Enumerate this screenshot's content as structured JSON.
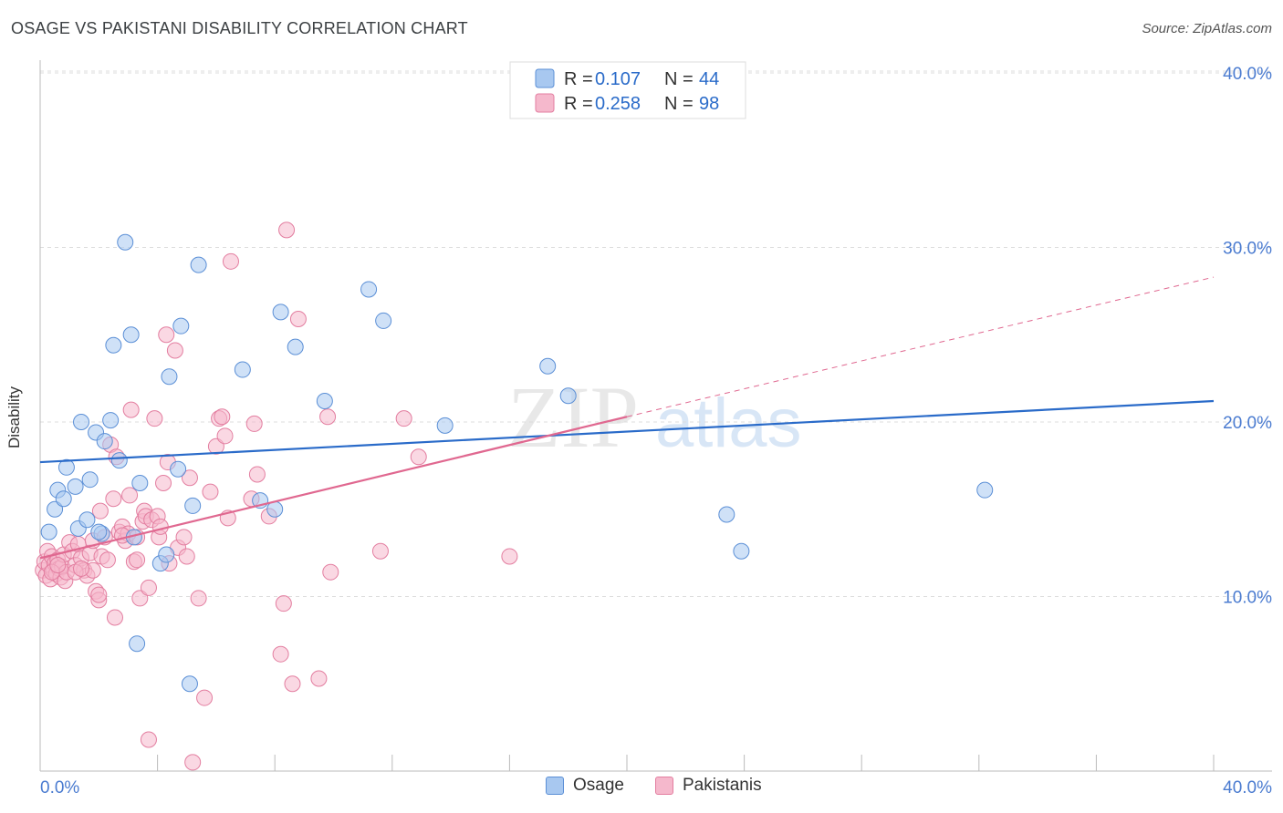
{
  "header": {
    "title": "OSAGE VS PAKISTANI DISABILITY CORRELATION CHART",
    "source": "Source: ZipAtlas.com"
  },
  "watermark": {
    "zip": "ZIP",
    "atlas": "atlas"
  },
  "legend": {
    "rows": [
      {
        "r_label": "R =",
        "r_value": "0.107",
        "n_label": "N =",
        "n_value": "44"
      },
      {
        "r_label": "R =",
        "r_value": "0.258",
        "n_label": "N =",
        "n_value": "98"
      }
    ]
  },
  "bottom_legend": {
    "osage": "Osage",
    "pakistanis": "Pakistanis"
  },
  "colors": {
    "osage_fill": "#a8c8f0",
    "osage_stroke": "#5b8fd6",
    "osage_line": "#2a6bc9",
    "pak_fill": "#f5b8cc",
    "pak_stroke": "#e37ea0",
    "pak_line": "#e06890",
    "axis_text": "#4a7bd0",
    "grid": "#dddddd"
  },
  "chart_data": {
    "type": "scatter",
    "title": "OSAGE VS PAKISTANI DISABILITY CORRELATION CHART",
    "xlabel": "",
    "ylabel": "Disability",
    "xlim": [
      0,
      40
    ],
    "ylim": [
      0,
      40
    ],
    "x_tick_labels": [
      "0.0%",
      "40.0%"
    ],
    "y_ticks": [
      10,
      20,
      30,
      40
    ],
    "y_tick_labels": [
      "10.0%",
      "20.0%",
      "30.0%",
      "40.0%"
    ],
    "grid": true,
    "legend_position": "top-center",
    "series": [
      {
        "name": "Osage",
        "r": 0.107,
        "n": 44,
        "trend": {
          "x": [
            0,
            40
          ],
          "y": [
            17.7,
            21.2
          ],
          "style": "solid"
        },
        "points": [
          [
            0.3,
            13.7
          ],
          [
            0.5,
            15.0
          ],
          [
            0.6,
            16.1
          ],
          [
            0.8,
            15.6
          ],
          [
            0.9,
            17.4
          ],
          [
            1.2,
            16.3
          ],
          [
            1.3,
            13.9
          ],
          [
            1.4,
            20.0
          ],
          [
            1.6,
            14.4
          ],
          [
            1.7,
            16.7
          ],
          [
            1.9,
            19.4
          ],
          [
            2.1,
            13.6
          ],
          [
            2.2,
            18.9
          ],
          [
            2.4,
            20.1
          ],
          [
            2.5,
            24.4
          ],
          [
            2.7,
            17.8
          ],
          [
            2.9,
            30.3
          ],
          [
            3.1,
            25.0
          ],
          [
            3.2,
            13.4
          ],
          [
            3.4,
            16.5
          ],
          [
            4.1,
            11.9
          ],
          [
            4.3,
            12.4
          ],
          [
            4.4,
            22.6
          ],
          [
            4.7,
            17.3
          ],
          [
            4.8,
            25.5
          ],
          [
            5.2,
            15.2
          ],
          [
            5.4,
            29.0
          ],
          [
            6.9,
            23.0
          ],
          [
            7.5,
            15.5
          ],
          [
            8.0,
            15.0
          ],
          [
            8.2,
            26.3
          ],
          [
            8.7,
            24.3
          ],
          [
            9.7,
            21.2
          ],
          [
            11.2,
            27.6
          ],
          [
            11.7,
            25.8
          ],
          [
            13.8,
            19.8
          ],
          [
            17.3,
            23.2
          ],
          [
            18.0,
            21.5
          ],
          [
            23.4,
            14.7
          ],
          [
            23.9,
            12.6
          ],
          [
            32.2,
            16.1
          ],
          [
            3.3,
            7.3
          ],
          [
            5.1,
            5.0
          ],
          [
            2.0,
            13.7
          ]
        ]
      },
      {
        "name": "Pakistanis",
        "r": 0.258,
        "n": 98,
        "trend": {
          "x": [
            0,
            20
          ],
          "y": [
            12.2,
            20.3
          ],
          "style": "solid",
          "extension": {
            "x": [
              20,
              40
            ],
            "y": [
              20.3,
              28.3
            ],
            "style": "dashed"
          }
        },
        "points": [
          [
            0.1,
            11.5
          ],
          [
            0.15,
            12.0
          ],
          [
            0.2,
            11.2
          ],
          [
            0.25,
            12.6
          ],
          [
            0.3,
            11.8
          ],
          [
            0.35,
            11.0
          ],
          [
            0.4,
            12.3
          ],
          [
            0.45,
            11.5
          ],
          [
            0.5,
            11.9
          ],
          [
            0.55,
            11.3
          ],
          [
            0.6,
            12.1
          ],
          [
            0.65,
            11.6
          ],
          [
            0.7,
            11.1
          ],
          [
            0.75,
            11.7
          ],
          [
            0.8,
            12.4
          ],
          [
            0.85,
            10.9
          ],
          [
            0.9,
            11.4
          ],
          [
            1.0,
            13.1
          ],
          [
            1.1,
            12.6
          ],
          [
            1.2,
            11.8
          ],
          [
            1.3,
            13.0
          ],
          [
            1.4,
            12.2
          ],
          [
            1.5,
            11.5
          ],
          [
            1.6,
            11.2
          ],
          [
            1.7,
            12.5
          ],
          [
            1.8,
            13.2
          ],
          [
            1.9,
            10.3
          ],
          [
            2.0,
            9.8
          ],
          [
            2.05,
            14.9
          ],
          [
            2.1,
            12.3
          ],
          [
            2.2,
            13.4
          ],
          [
            2.3,
            12.1
          ],
          [
            2.4,
            18.7
          ],
          [
            2.5,
            15.6
          ],
          [
            2.55,
            8.8
          ],
          [
            2.6,
            18.0
          ],
          [
            2.7,
            13.7
          ],
          [
            2.8,
            14.0
          ],
          [
            2.9,
            13.2
          ],
          [
            3.0,
            13.6
          ],
          [
            3.05,
            15.8
          ],
          [
            3.1,
            20.7
          ],
          [
            3.2,
            12.0
          ],
          [
            3.3,
            13.4
          ],
          [
            3.4,
            9.9
          ],
          [
            3.5,
            14.3
          ],
          [
            3.55,
            14.9
          ],
          [
            3.6,
            14.6
          ],
          [
            3.7,
            10.5
          ],
          [
            3.8,
            14.4
          ],
          [
            3.9,
            20.2
          ],
          [
            4.0,
            14.6
          ],
          [
            4.05,
            13.4
          ],
          [
            4.1,
            14.0
          ],
          [
            4.2,
            16.5
          ],
          [
            4.3,
            25.0
          ],
          [
            4.35,
            17.7
          ],
          [
            4.4,
            11.9
          ],
          [
            4.6,
            24.1
          ],
          [
            4.7,
            12.8
          ],
          [
            4.9,
            13.4
          ],
          [
            5.0,
            12.3
          ],
          [
            5.1,
            16.8
          ],
          [
            5.4,
            9.9
          ],
          [
            5.6,
            4.2
          ],
          [
            5.8,
            16.0
          ],
          [
            6.0,
            18.6
          ],
          [
            6.1,
            20.2
          ],
          [
            6.2,
            20.3
          ],
          [
            6.3,
            19.2
          ],
          [
            6.4,
            14.5
          ],
          [
            6.5,
            29.2
          ],
          [
            7.2,
            15.6
          ],
          [
            7.3,
            19.9
          ],
          [
            7.4,
            17.0
          ],
          [
            7.8,
            14.6
          ],
          [
            8.2,
            6.7
          ],
          [
            8.3,
            9.6
          ],
          [
            8.4,
            31.0
          ],
          [
            8.6,
            5.0
          ],
          [
            8.8,
            25.9
          ],
          [
            9.5,
            5.3
          ],
          [
            9.8,
            20.3
          ],
          [
            9.9,
            11.4
          ],
          [
            11.6,
            12.6
          ],
          [
            12.4,
            20.2
          ],
          [
            12.9,
            18.0
          ],
          [
            16.0,
            12.3
          ],
          [
            3.7,
            1.8
          ],
          [
            5.2,
            0.5
          ],
          [
            2.8,
            13.5
          ],
          [
            3.3,
            12.1
          ],
          [
            1.8,
            11.5
          ],
          [
            0.4,
            11.4
          ],
          [
            1.2,
            11.4
          ],
          [
            0.6,
            11.8
          ],
          [
            2.0,
            10.1
          ],
          [
            1.4,
            11.6
          ]
        ]
      }
    ]
  }
}
